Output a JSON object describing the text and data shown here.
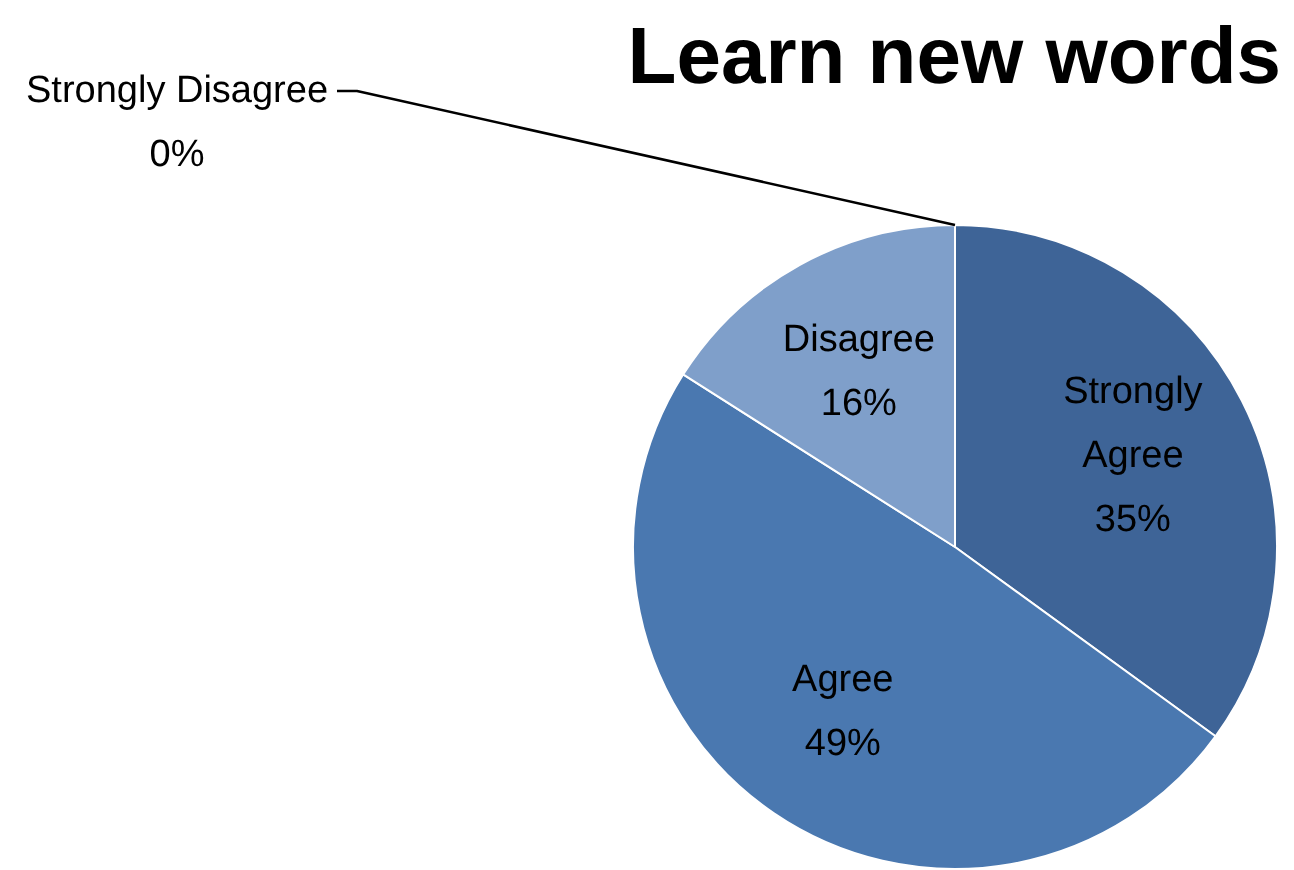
{
  "chart_data": {
    "type": "pie",
    "title": "Learn new words",
    "categories": [
      "Strongly Agree",
      "Agree",
      "Disagree",
      "Strongly Disagree"
    ],
    "values": [
      35,
      49,
      16,
      0
    ],
    "value_labels": [
      "35%",
      "49%",
      "16%",
      "0%"
    ],
    "colors": [
      "#3e6497",
      "#4a78b0",
      "#7f9fca",
      "#b9c9e1"
    ]
  }
}
